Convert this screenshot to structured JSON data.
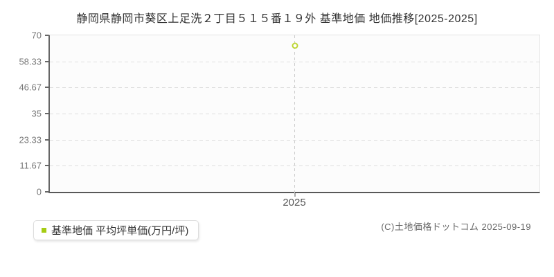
{
  "page": {
    "title": "静岡県静岡市葵区上足洗２丁目５１５番１９外 基準地価 地価推移[2025-2025]"
  },
  "chart_data": {
    "type": "scatter",
    "title": "静岡県静岡市葵区上足洗２丁目５１５番１９外 基準地価 地価推移[2025-2025]",
    "categories": [
      2025
    ],
    "series": [
      {
        "name": "基準地価 平均坪単価(万円/坪)",
        "values": [
          65.3
        ],
        "marker": "open-circle",
        "marker_color": "#bdd633"
      }
    ],
    "xlabel": "",
    "ylabel": "",
    "ylim": [
      0,
      70
    ],
    "yticks": [
      "70",
      "58.33",
      "46.67",
      "35",
      "23.33",
      "11.67",
      "0"
    ],
    "xticks": [
      "2025"
    ],
    "grid": {
      "horizontal": "dashed",
      "vertical": "dashed-at-xtick"
    },
    "legend_position": "bottom-left"
  },
  "legend": {
    "label": "基準地価 平均坪単価(万円/坪)"
  },
  "footer": {
    "copyright": "(C)土地価格ドットコム 2025-09-19"
  },
  "colors": {
    "accent_green_marker": "#bdd633",
    "accent_green_swatch": "#a5cc14",
    "axis_line": "#666666",
    "grid_line": "#dedede",
    "tick_label": "#777777",
    "title_text": "#333333",
    "plot_background": "#fcfcfc",
    "page_background": "#ffffff"
  }
}
